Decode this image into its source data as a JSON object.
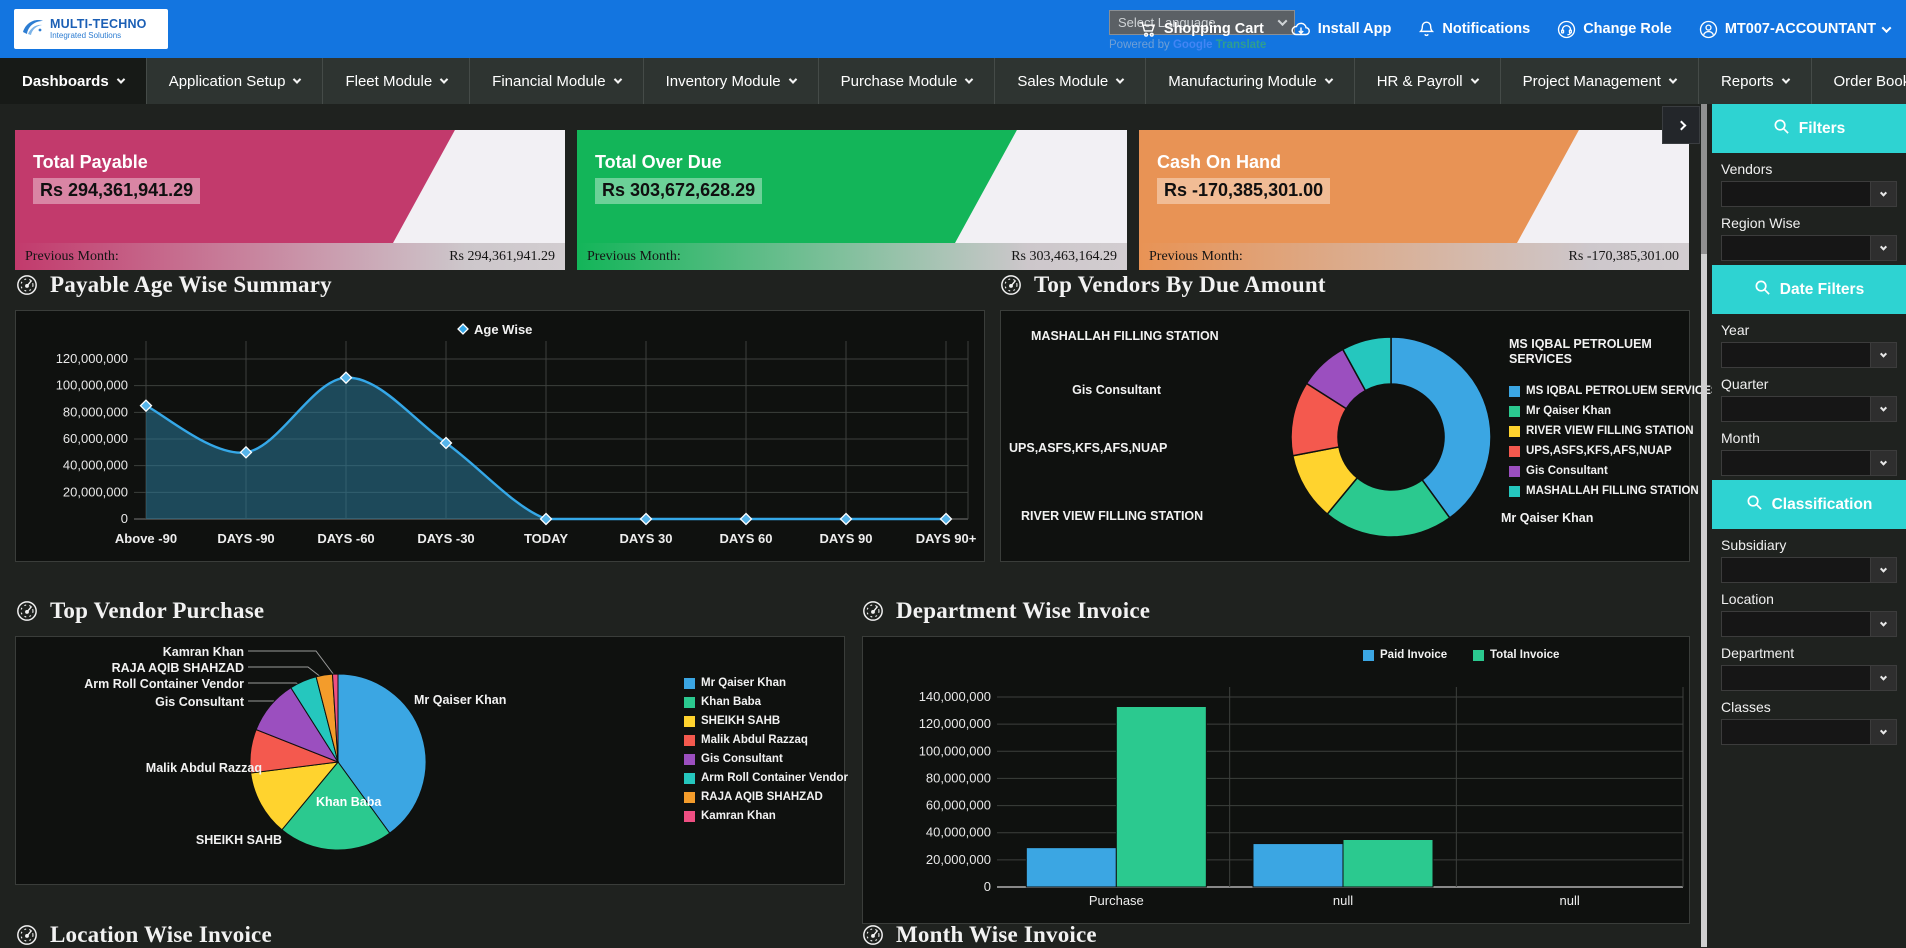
{
  "topbar": {
    "logo": {
      "title": "MULTI-TECHNO",
      "subtitle": "Integrated Solutions"
    },
    "language_select": {
      "value": "Select Language"
    },
    "translate_credit": {
      "prefix": "Powered by",
      "brand": "Google",
      "suffix": "Translate"
    },
    "actions": [
      {
        "label": "Shopping Cart",
        "icon": "cart-icon"
      },
      {
        "label": "Install App",
        "icon": "install-app-icon"
      },
      {
        "label": "Notifications",
        "icon": "bell-icon"
      },
      {
        "label": "Change Role",
        "icon": "change-role-icon"
      },
      {
        "label": "MT007-ACCOUNTANT",
        "icon": "user-icon",
        "has_chevron": true
      }
    ]
  },
  "nav": {
    "items": [
      {
        "label": "Dashboards",
        "active": true
      },
      {
        "label": "Application Setup",
        "active": false
      },
      {
        "label": "Fleet Module",
        "active": false
      },
      {
        "label": "Financial Module",
        "active": false
      },
      {
        "label": "Inventory Module",
        "active": false
      },
      {
        "label": "Purchase Module",
        "active": false
      },
      {
        "label": "Sales Module",
        "active": false
      },
      {
        "label": "Manufacturing Module",
        "active": false
      },
      {
        "label": "HR & Payroll",
        "active": false
      },
      {
        "label": "Project Management",
        "active": false
      },
      {
        "label": "Reports",
        "active": false
      },
      {
        "label": "Order Booking App",
        "active": false
      }
    ]
  },
  "kpi_cards": [
    {
      "title": "Total Payable",
      "value": "Rs 294,361,941.29",
      "previous_label": "Previous Month:",
      "previous_value": "Rs 294,361,941.29",
      "color": "#c23a6c"
    },
    {
      "title": "Total Over Due",
      "value": "Rs 303,672,628.29",
      "previous_label": "Previous Month:",
      "previous_value": "Rs 303,463,164.29",
      "color": "#13b559"
    },
    {
      "title": "Cash On Hand",
      "value": "Rs -170,385,301.00",
      "previous_label": "Previous Month:",
      "previous_value": "Rs -170,385,301.00",
      "color": "#e89355"
    }
  ],
  "sections": {
    "payable_age": {
      "title": "Payable Age Wise Summary"
    },
    "top_vendors_due": {
      "title": "Top Vendors By Due Amount"
    },
    "top_vendor_purchase": {
      "title": "Top Vendor Purchase"
    },
    "department_invoice": {
      "title": "Department Wise Invoice"
    },
    "location_invoice": {
      "title": "Location Wise Invoice"
    },
    "month_invoice": {
      "title": "Month Wise Invoice"
    }
  },
  "chart_data": [
    {
      "id": "age_wise",
      "type": "area",
      "title": "Payable Age Wise Summary",
      "legend": [
        "Age Wise"
      ],
      "legend_position": "top-center",
      "categories": [
        "Above -90",
        "DAYS -90",
        "DAYS -60",
        "DAYS -30",
        "TODAY",
        "DAYS 30",
        "DAYS 60",
        "DAYS 90",
        "DAYS 90+"
      ],
      "values": [
        85000000,
        50000000,
        106000000,
        57000000,
        0,
        0,
        0,
        0,
        0
      ],
      "ylim": [
        0,
        120000000
      ],
      "ytick_step": 20000000,
      "grid": true,
      "line_color": "#35a8e8",
      "fill_color": "rgba(41,120,153,0.55)"
    },
    {
      "id": "vendors_due",
      "type": "donut",
      "title": "Top Vendors By Due Amount",
      "legend_position": "right",
      "note": "slice sizes estimated from arc angles (percent)",
      "slices": [
        {
          "label": "MS IQBAL PETROLUEM SERVICES",
          "value": 40,
          "color": "#3ba6e3"
        },
        {
          "label": "Mr Qaiser Khan",
          "value": 21,
          "color": "#2bc98f"
        },
        {
          "label": "RIVER VIEW FILLING STATION",
          "value": 11,
          "color": "#ffd32e"
        },
        {
          "label": "UPS,ASFS,KFS,AFS,NUAP",
          "value": 12,
          "color": "#f4594e"
        },
        {
          "label": "Gis Consultant",
          "value": 8,
          "color": "#9b4fbf"
        },
        {
          "label": "MASHALLAH FILLING STATION",
          "value": 8,
          "color": "#25c7be"
        }
      ]
    },
    {
      "id": "vendor_purchase",
      "type": "pie",
      "title": "Top Vendor Purchase",
      "legend_position": "right",
      "note": "slice sizes estimated from arc angles (percent)",
      "slices": [
        {
          "label": "Mr Qaiser Khan",
          "value": 40,
          "color": "#3ba6e3"
        },
        {
          "label": "Khan Baba",
          "value": 21,
          "color": "#2bc98f"
        },
        {
          "label": "SHEIKH SAHB",
          "value": 12,
          "color": "#ffd32e"
        },
        {
          "label": "Malik Abdul Razzaq",
          "value": 8,
          "color": "#f4594e"
        },
        {
          "label": "Gis Consultant",
          "value": 10,
          "color": "#9b4fbf"
        },
        {
          "label": "Arm Roll Container Vendor",
          "value": 5,
          "color": "#25c7be"
        },
        {
          "label": "RAJA AQIB SHAHZAD",
          "value": 3,
          "color": "#f39c2b"
        },
        {
          "label": "Kamran Khan",
          "value": 1,
          "color": "#ee4f82"
        }
      ]
    },
    {
      "id": "dept_invoice",
      "type": "bar",
      "title": "Department Wise Invoice",
      "legend_position": "top-right",
      "categories": [
        "Purchase",
        "null",
        "null"
      ],
      "series": [
        {
          "name": "Paid Invoice",
          "color": "#3ba6e3",
          "values": [
            29000000,
            32000000,
            0
          ]
        },
        {
          "name": "Total Invoice",
          "color": "#2bc98f",
          "values": [
            133000000,
            35000000,
            0
          ]
        }
      ],
      "ylim": [
        0,
        140000000
      ],
      "ytick_step": 20000000,
      "grid": true
    }
  ],
  "sidebar": {
    "accent_color": "#2ed3d2",
    "groups": [
      {
        "header": "Filters",
        "icon": "search-icon",
        "fields": [
          {
            "label": "Vendors",
            "value": ""
          },
          {
            "label": "Region Wise",
            "value": ""
          }
        ]
      },
      {
        "header": "Date Filters",
        "icon": "search-icon",
        "fields": [
          {
            "label": "Year",
            "value": ""
          },
          {
            "label": "Quarter",
            "value": ""
          },
          {
            "label": "Month",
            "value": ""
          }
        ]
      },
      {
        "header": "Classification",
        "icon": "search-icon",
        "fields": [
          {
            "label": "Subsidiary",
            "value": ""
          },
          {
            "label": "Location",
            "value": ""
          },
          {
            "label": "Department",
            "value": ""
          },
          {
            "label": "Classes",
            "value": ""
          }
        ]
      }
    ]
  }
}
